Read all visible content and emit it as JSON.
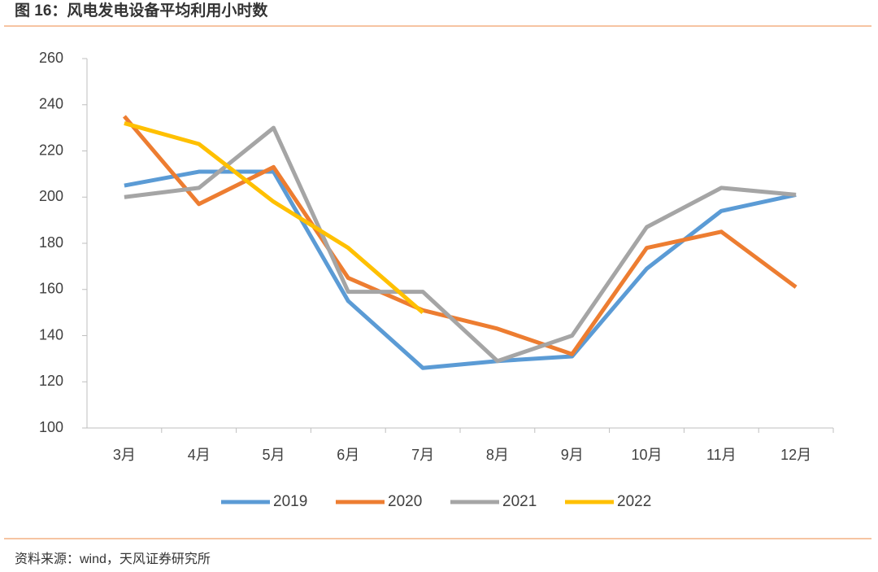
{
  "chart_data": {
    "type": "line",
    "title": "图 16：风电发电设备平均利用小时数",
    "source": "资料来源：wind，天风证券研究所",
    "categories": [
      "3月",
      "4月",
      "5月",
      "6月",
      "7月",
      "8月",
      "9月",
      "10月",
      "11月",
      "12月"
    ],
    "series": [
      {
        "name": "2019",
        "color": "#5b9bd5",
        "values": [
          205,
          211,
          211,
          155,
          126,
          129,
          131,
          169,
          194,
          201
        ]
      },
      {
        "name": "2020",
        "color": "#ed7d31",
        "values": [
          235,
          197,
          213,
          165,
          151,
          143,
          132,
          178,
          185,
          161
        ]
      },
      {
        "name": "2021",
        "color": "#a5a5a5",
        "values": [
          200,
          204,
          230,
          159,
          159,
          129,
          140,
          187,
          204,
          201
        ]
      },
      {
        "name": "2022",
        "color": "#ffc000",
        "values": [
          232,
          223,
          198,
          178,
          150,
          null,
          null,
          null,
          null,
          null
        ]
      }
    ],
    "ylim": [
      100,
      260
    ],
    "yticks": [
      100,
      120,
      140,
      160,
      180,
      200,
      220,
      240,
      260
    ],
    "legend": "bottom"
  }
}
